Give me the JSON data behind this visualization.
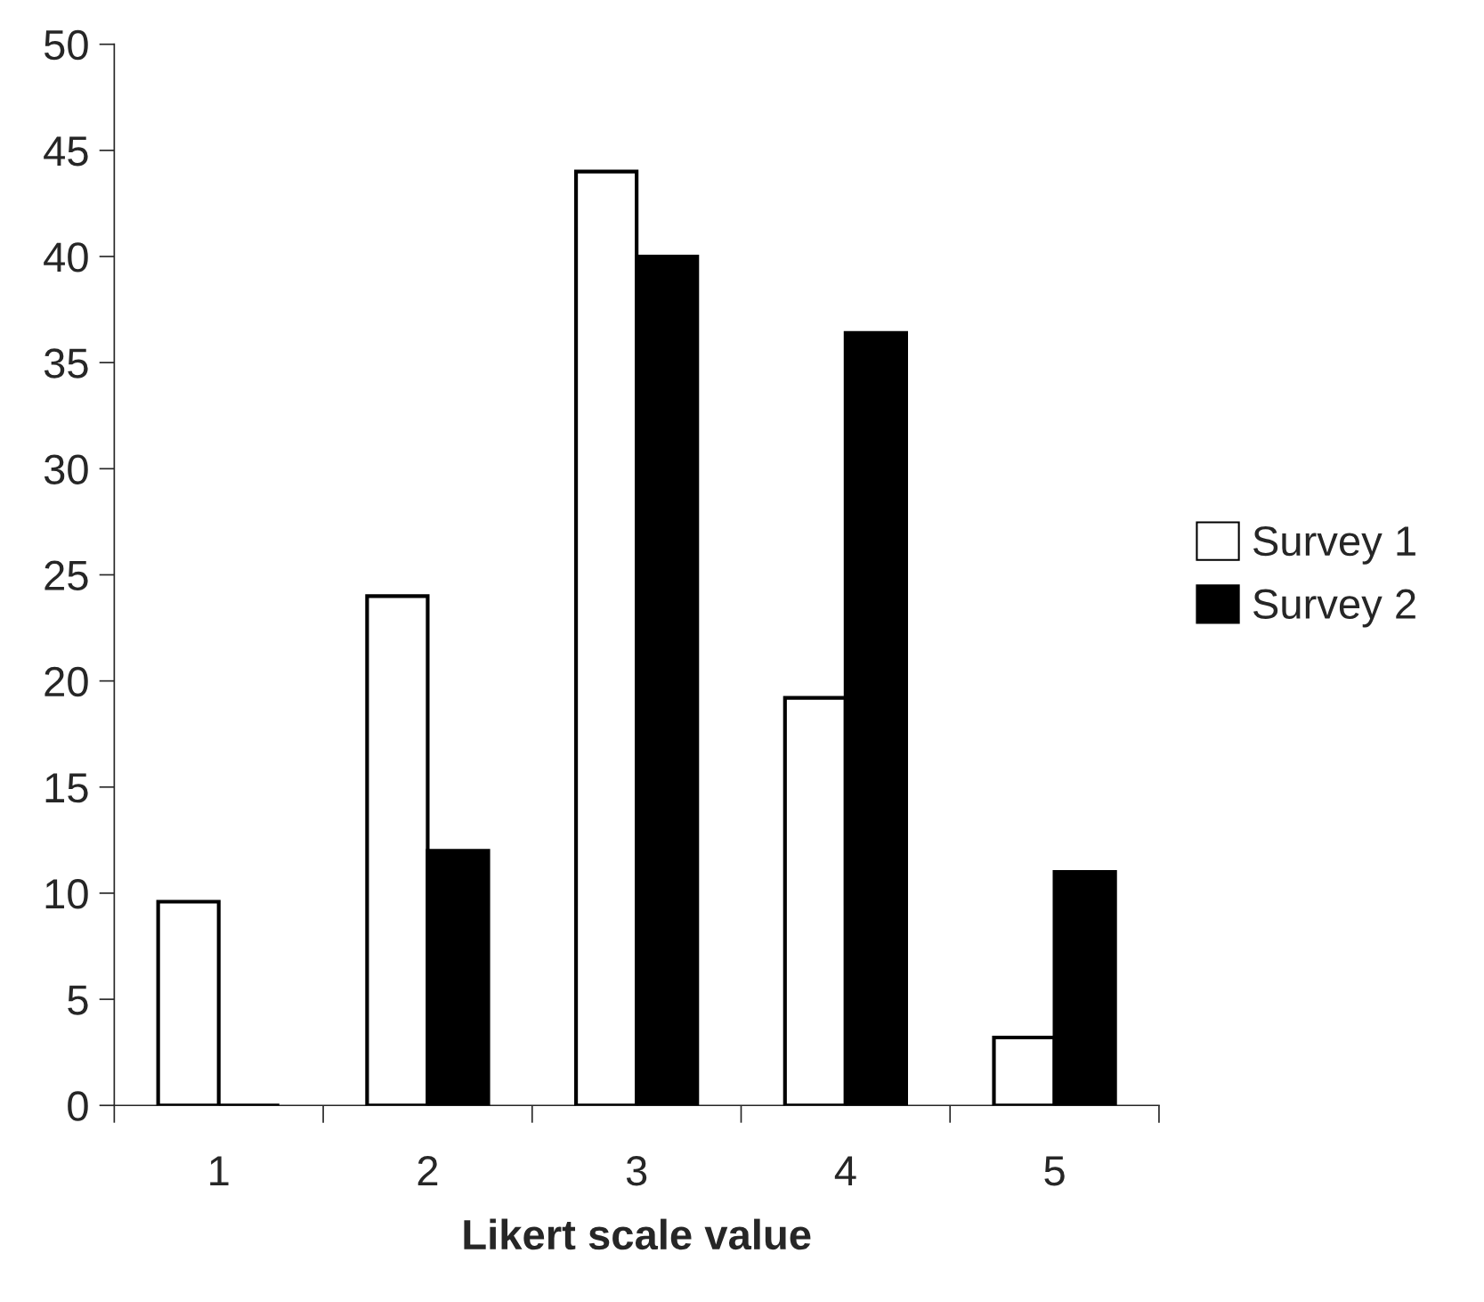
{
  "chart_data": {
    "type": "bar",
    "xlabel": "Likert scale value",
    "categories": [
      "1",
      "2",
      "3",
      "4",
      "5"
    ],
    "series": [
      {
        "name": "Survey 1",
        "color": "#ffffff",
        "values": [
          9.6,
          24.0,
          44.0,
          19.2,
          3.2
        ]
      },
      {
        "name": "Survey 2",
        "color": "#000000",
        "values": [
          0,
          12.0,
          40.0,
          36.4,
          11.0
        ]
      }
    ],
    "ylim": [
      0,
      50
    ],
    "yticks": [
      0,
      5,
      10,
      15,
      20,
      25,
      30,
      35,
      40,
      45,
      50
    ],
    "grid": false,
    "legend": "right"
  }
}
